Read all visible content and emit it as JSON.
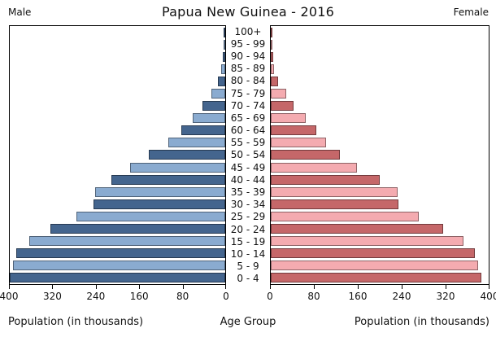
{
  "title": "Papua New Guinea - 2016",
  "headers": {
    "left": "Male",
    "right": "Female"
  },
  "footer": {
    "left_label": "Population (in thousands)",
    "center_label": "Age Group",
    "right_label": "Population (in thousands)"
  },
  "axis": {
    "male_tick_labels": [
      "400",
      "320",
      "240",
      "160",
      "80",
      "0"
    ],
    "female_tick_labels": [
      "0",
      "80",
      "160",
      "240",
      "320",
      "400"
    ],
    "max_value": 400
  },
  "colors": {
    "male_dark": "#44658e",
    "male_light": "#8aabd0",
    "female_dark": "#c56769",
    "female_light": "#f4abb0",
    "axis_line": "#000000"
  },
  "chart_data": {
    "type": "bar",
    "variant": "population-pyramid",
    "title": "Papua New Guinea - 2016",
    "unit": "thousands of people",
    "xlabel": "Population (in thousands)",
    "ylabel": "Age Group",
    "xlim": [
      0,
      400
    ],
    "grid": false,
    "categories": [
      "100+",
      "95 - 99",
      "90 - 94",
      "85 - 89",
      "80 - 84",
      "75 - 79",
      "70 - 74",
      "65 - 69",
      "60 - 64",
      "55 - 59",
      "50 - 54",
      "45 - 49",
      "40 - 44",
      "35 - 39",
      "30 - 34",
      "25 - 29",
      "20 - 24",
      "15 - 19",
      "10 - 14",
      "5 - 9",
      "0 - 4"
    ],
    "series": [
      {
        "name": "Male",
        "values": [
          1,
          3,
          5,
          8,
          14,
          25,
          43,
          61,
          81,
          106,
          142,
          177,
          212,
          242,
          244,
          277,
          324,
          364,
          388,
          394,
          402
        ]
      },
      {
        "name": "Female",
        "values": [
          1,
          2,
          4,
          6,
          13,
          28,
          42,
          64,
          84,
          102,
          127,
          158,
          200,
          233,
          235,
          272,
          317,
          354,
          374,
          380,
          387
        ]
      }
    ]
  }
}
